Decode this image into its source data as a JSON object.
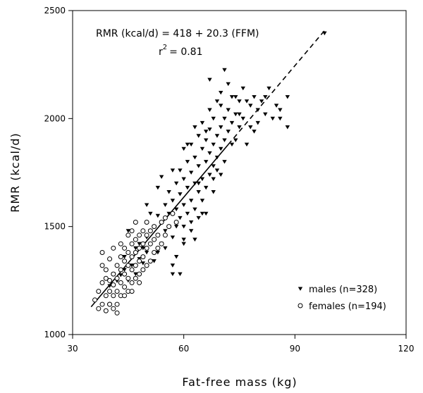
{
  "chart_data": {
    "type": "scatter",
    "title": "",
    "xlabel": "Fat-free mass (kg)",
    "ylabel": "RMR (kcal/d)",
    "xlim": [
      30,
      120
    ],
    "ylim": [
      1000,
      2500
    ],
    "x_ticks": [
      30,
      60,
      90,
      120
    ],
    "y_ticks": [
      1000,
      1500,
      2000,
      2500
    ],
    "grid": false,
    "legend_position": "lower-right",
    "annotations": {
      "equation": "RMR (kcal/d) = 418 + 20.3 (FFM)",
      "r2_prefix": "r",
      "r2_exponent": "2",
      "r2_suffix": "= 0.81"
    },
    "regression": {
      "intercept": 418,
      "slope": 20.3,
      "solid_x": [
        35,
        72
      ],
      "dashed_x": [
        72,
        98
      ]
    },
    "series": [
      {
        "name": "males (n=328)",
        "marker": "filled-triangle-down",
        "points": [
          [
            40,
            1225
          ],
          [
            42,
            1248
          ],
          [
            43,
            1275
          ],
          [
            44,
            1300
          ],
          [
            45,
            1250
          ],
          [
            46,
            1320
          ],
          [
            47,
            1280
          ],
          [
            48,
            1350
          ],
          [
            48,
            1420
          ],
          [
            49,
            1400
          ],
          [
            49,
            1330
          ],
          [
            50,
            1450
          ],
          [
            50,
            1380
          ],
          [
            51,
            1480
          ],
          [
            51,
            1420
          ],
          [
            52,
            1500
          ],
          [
            52,
            1340
          ],
          [
            53,
            1550
          ],
          [
            53,
            1460
          ],
          [
            54,
            1520
          ],
          [
            54,
            1420
          ],
          [
            55,
            1480
          ],
          [
            55,
            1600
          ],
          [
            56,
            1560
          ],
          [
            56,
            1500
          ],
          [
            57,
            1620
          ],
          [
            57,
            1450
          ],
          [
            57,
            1320
          ],
          [
            58,
            1580
          ],
          [
            58,
            1700
          ],
          [
            58,
            1500
          ],
          [
            59,
            1650
          ],
          [
            59,
            1540
          ],
          [
            59,
            1280
          ],
          [
            60,
            1720
          ],
          [
            60,
            1600
          ],
          [
            60,
            1500
          ],
          [
            60,
            1420
          ],
          [
            61,
            1680
          ],
          [
            61,
            1800
          ],
          [
            61,
            1560
          ],
          [
            62,
            1750
          ],
          [
            62,
            1620
          ],
          [
            62,
            1880
          ],
          [
            62,
            1480
          ],
          [
            63,
            1700
          ],
          [
            63,
            1820
          ],
          [
            63,
            1580
          ],
          [
            63,
            1440
          ],
          [
            64,
            1780
          ],
          [
            64,
            1660
          ],
          [
            64,
            1920
          ],
          [
            64,
            1540
          ],
          [
            65,
            1860
          ],
          [
            65,
            1720
          ],
          [
            65,
            1620
          ],
          [
            65,
            1980
          ],
          [
            66,
            1800
          ],
          [
            66,
            1900
          ],
          [
            66,
            1680
          ],
          [
            66,
            1560
          ],
          [
            67,
            1950
          ],
          [
            67,
            1840
          ],
          [
            67,
            1740
          ],
          [
            67,
            2040
          ],
          [
            68,
            1880
          ],
          [
            68,
            1780
          ],
          [
            68,
            2000
          ],
          [
            68,
            1660
          ],
          [
            69,
            1920
          ],
          [
            69,
            2080
          ],
          [
            69,
            1820
          ],
          [
            70,
            1960
          ],
          [
            70,
            1860
          ],
          [
            70,
            2120
          ],
          [
            70,
            1740
          ],
          [
            71,
            2000
          ],
          [
            71,
            1900
          ],
          [
            71,
            1800
          ],
          [
            72,
            2040
          ],
          [
            72,
            1940
          ],
          [
            72,
            2160
          ],
          [
            73,
            1980
          ],
          [
            73,
            1880
          ],
          [
            74,
            2020
          ],
          [
            74,
            2100
          ],
          [
            75,
            1960
          ],
          [
            75,
            2080
          ],
          [
            76,
            2000
          ],
          [
            76,
            2140
          ],
          [
            77,
            1880
          ],
          [
            78,
            1960
          ],
          [
            78,
            2060
          ],
          [
            79,
            2100
          ],
          [
            80,
            1980
          ],
          [
            80,
            2040
          ],
          [
            81,
            2080
          ],
          [
            82,
            2020
          ],
          [
            83,
            2140
          ],
          [
            84,
            2000
          ],
          [
            85,
            2060
          ],
          [
            86,
            2000
          ],
          [
            88,
            1960
          ],
          [
            88,
            2100
          ],
          [
            98,
            2395
          ],
          [
            71,
            2225
          ],
          [
            67,
            2180
          ],
          [
            54,
            1730
          ],
          [
            50,
            1600
          ],
          [
            45,
            1480
          ],
          [
            56,
            1660
          ],
          [
            59,
            1760
          ],
          [
            61,
            1880
          ],
          [
            64,
            1700
          ],
          [
            66,
            1940
          ],
          [
            68,
            1720
          ],
          [
            70,
            2060
          ],
          [
            73,
            2100
          ],
          [
            75,
            2020
          ],
          [
            77,
            2080
          ],
          [
            79,
            1940
          ],
          [
            82,
            2100
          ],
          [
            86,
            2040
          ],
          [
            60,
            1440
          ],
          [
            62,
            1520
          ],
          [
            65,
            1560
          ],
          [
            58,
            1360
          ],
          [
            55,
            1400
          ],
          [
            53,
            1380
          ],
          [
            57,
            1280
          ],
          [
            69,
            1760
          ],
          [
            74,
            1900
          ],
          [
            63,
            1960
          ],
          [
            60,
            1860
          ],
          [
            57,
            1760
          ],
          [
            53,
            1680
          ],
          [
            51,
            1560
          ],
          [
            47,
            1400
          ],
          [
            44,
            1360
          ],
          [
            41,
            1280
          ]
        ]
      },
      {
        "name": "females (n=194)",
        "marker": "open-circle",
        "points": [
          [
            36,
            1160
          ],
          [
            37,
            1120
          ],
          [
            37,
            1200
          ],
          [
            38,
            1140
          ],
          [
            38,
            1240
          ],
          [
            38,
            1320
          ],
          [
            38,
            1380
          ],
          [
            39,
            1110
          ],
          [
            39,
            1180
          ],
          [
            39,
            1260
          ],
          [
            39,
            1300
          ],
          [
            40,
            1140
          ],
          [
            40,
            1200
          ],
          [
            40,
            1250
          ],
          [
            40,
            1350
          ],
          [
            41,
            1120
          ],
          [
            41,
            1180
          ],
          [
            41,
            1230
          ],
          [
            41,
            1280
          ],
          [
            41,
            1400
          ],
          [
            42,
            1100
          ],
          [
            42,
            1200
          ],
          [
            42,
            1260
          ],
          [
            42,
            1320
          ],
          [
            43,
            1180
          ],
          [
            43,
            1240
          ],
          [
            43,
            1300
          ],
          [
            43,
            1360
          ],
          [
            43,
            1420
          ],
          [
            44,
            1220
          ],
          [
            44,
            1280
          ],
          [
            44,
            1340
          ],
          [
            44,
            1400
          ],
          [
            45,
            1200
          ],
          [
            45,
            1260
          ],
          [
            45,
            1320
          ],
          [
            45,
            1380
          ],
          [
            45,
            1460
          ],
          [
            46,
            1240
          ],
          [
            46,
            1300
          ],
          [
            46,
            1360
          ],
          [
            46,
            1420
          ],
          [
            46,
            1480
          ],
          [
            47,
            1260
          ],
          [
            47,
            1320
          ],
          [
            47,
            1380
          ],
          [
            47,
            1440
          ],
          [
            47,
            1520
          ],
          [
            48,
            1280
          ],
          [
            48,
            1340
          ],
          [
            48,
            1400
          ],
          [
            48,
            1460
          ],
          [
            49,
            1300
          ],
          [
            49,
            1360
          ],
          [
            49,
            1420
          ],
          [
            49,
            1480
          ],
          [
            50,
            1320
          ],
          [
            50,
            1400
          ],
          [
            50,
            1460
          ],
          [
            50,
            1520
          ],
          [
            51,
            1340
          ],
          [
            51,
            1420
          ],
          [
            51,
            1480
          ],
          [
            52,
            1380
          ],
          [
            52,
            1440
          ],
          [
            52,
            1500
          ],
          [
            53,
            1400
          ],
          [
            53,
            1460
          ],
          [
            54,
            1420
          ],
          [
            54,
            1520
          ],
          [
            55,
            1460
          ],
          [
            55,
            1540
          ],
          [
            56,
            1500
          ],
          [
            57,
            1560
          ],
          [
            58,
            1520
          ],
          [
            40,
            1140
          ],
          [
            42,
            1140
          ],
          [
            44,
            1180
          ],
          [
            46,
            1200
          ],
          [
            48,
            1240
          ]
        ]
      }
    ]
  }
}
